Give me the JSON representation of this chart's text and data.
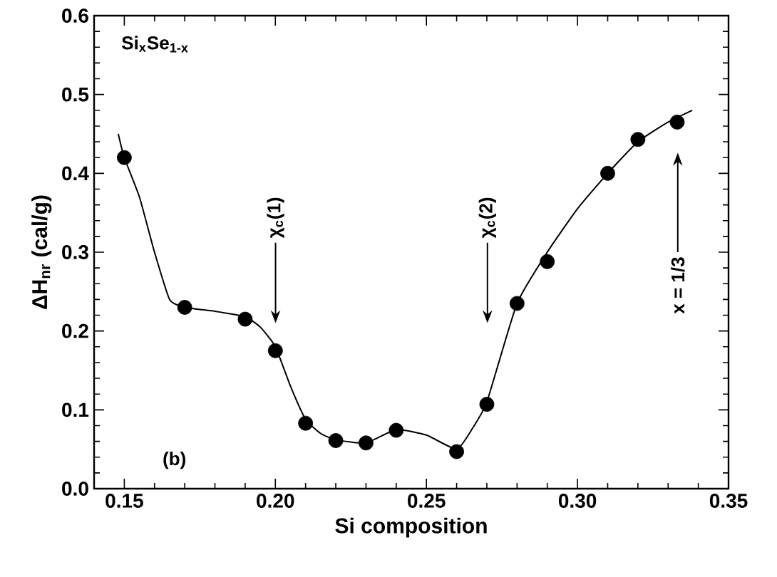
{
  "chart_data": {
    "type": "scatter",
    "xlabel": "Si composition",
    "ylabel": "ΔH$_{nr}$ (cal/g)",
    "xlim": [
      0.14,
      0.35
    ],
    "ylim": [
      0.0,
      0.6
    ],
    "xticks": [
      {
        "value": 0.15,
        "label": "0.15"
      },
      {
        "value": 0.2,
        "label": "0.20"
      },
      {
        "value": 0.25,
        "label": "0.25"
      },
      {
        "value": 0.3,
        "label": "0.30"
      },
      {
        "value": 0.35,
        "label": "0.35"
      }
    ],
    "yticks": [
      {
        "value": 0.0,
        "label": "0.0"
      },
      {
        "value": 0.1,
        "label": "0.1"
      },
      {
        "value": 0.2,
        "label": "0.2"
      },
      {
        "value": 0.3,
        "label": "0.3"
      },
      {
        "value": 0.4,
        "label": "0.4"
      },
      {
        "value": 0.5,
        "label": "0.5"
      },
      {
        "value": 0.6,
        "label": "0.6"
      }
    ],
    "grid": false,
    "series": [
      {
        "marker": "circle",
        "color": "#000000",
        "x": [
          0.15,
          0.17,
          0.19,
          0.2,
          0.21,
          0.22,
          0.23,
          0.24,
          0.26,
          0.27,
          0.28,
          0.29,
          0.31,
          0.32,
          0.333
        ],
        "values": [
          0.42,
          0.23,
          0.215,
          0.175,
          0.083,
          0.061,
          0.058,
          0.074,
          0.047,
          0.107,
          0.235,
          0.288,
          0.4,
          0.443,
          0.465
        ]
      },
      {
        "type": "line",
        "marker": "none",
        "color": "#000000",
        "x": [
          0.148,
          0.15,
          0.155,
          0.16,
          0.165,
          0.17,
          0.18,
          0.19,
          0.195,
          0.2,
          0.205,
          0.21,
          0.215,
          0.22,
          0.23,
          0.24,
          0.25,
          0.26,
          0.265,
          0.27,
          0.28,
          0.29,
          0.3,
          0.31,
          0.32,
          0.33,
          0.338
        ],
        "values": [
          0.45,
          0.42,
          0.37,
          0.3,
          0.24,
          0.23,
          0.225,
          0.218,
          0.205,
          0.18,
          0.13,
          0.088,
          0.07,
          0.062,
          0.058,
          0.075,
          0.068,
          0.05,
          0.075,
          0.11,
          0.235,
          0.3,
          0.355,
          0.4,
          0.44,
          0.465,
          0.48
        ]
      }
    ],
    "annotations": [
      "Si$_{x}$Se$_{1-x}$",
      "(b)",
      "χ$_{c}$(1)",
      "χ$_{c}$(2)",
      "x = 1/3"
    ]
  }
}
